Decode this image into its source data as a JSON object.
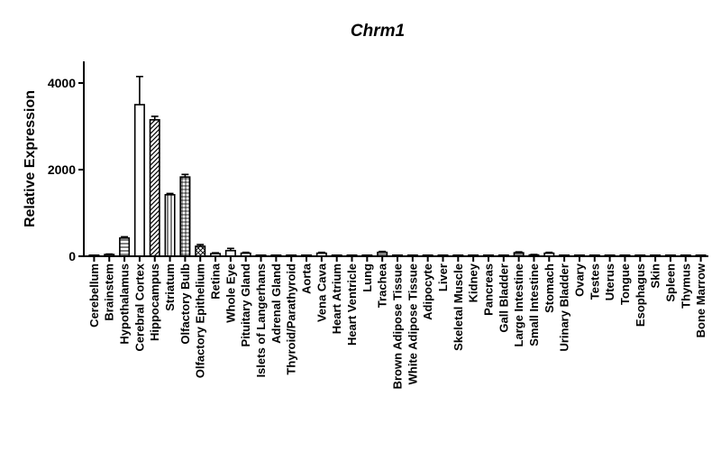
{
  "chart_data": {
    "type": "bar",
    "title": "Chrm1",
    "ylabel": "Relative Expression",
    "xlabel": "",
    "ylim": [
      0,
      4500
    ],
    "yticks": [
      0,
      2000,
      4000
    ],
    "grid": false,
    "categories": [
      "Cerebellum",
      "Brainstem",
      "Hypothalamus",
      "Cerebral Cortex",
      "Hippocampus",
      "Striatum",
      "Olfactory Bulb",
      "Olfactory Epithelium",
      "Retina",
      "Whole Eye",
      "Pituitary Gland",
      "Islets of Langerhans",
      "Adrenal Gland",
      "Thyroid/Parathyroid",
      "Aorta",
      "Vena Cava",
      "Heart Atrium",
      "Heart Ventricle",
      "Lung",
      "Trachea",
      "Brown Adipose Tissue",
      "White Adipose Tissue",
      "Adipocyte",
      "Liver",
      "Skeletal Muscle",
      "Kidney",
      "Pancreas",
      "Gall Bladder",
      "Large Intestine",
      "Small Intestine",
      "Stomach",
      "Urinary Bladder",
      "Ovary",
      "Testes",
      "Uterus",
      "Tongue",
      "Esophagus",
      "Skin",
      "Spleen",
      "Thymus",
      "Bone Marrow"
    ],
    "values": [
      10,
      40,
      420,
      3500,
      3150,
      1420,
      1830,
      230,
      60,
      130,
      70,
      20,
      15,
      15,
      10,
      70,
      10,
      10,
      15,
      90,
      10,
      10,
      10,
      5,
      10,
      10,
      15,
      10,
      80,
      30,
      70,
      10,
      10,
      5,
      5,
      5,
      5,
      10,
      5,
      5,
      5
    ],
    "errors": [
      5,
      10,
      30,
      650,
      80,
      30,
      60,
      40,
      20,
      50,
      20,
      5,
      5,
      5,
      5,
      20,
      5,
      5,
      5,
      20,
      5,
      5,
      5,
      5,
      5,
      5,
      5,
      5,
      20,
      10,
      20,
      5,
      5,
      5,
      5,
      5,
      5,
      5,
      5,
      5,
      5
    ],
    "patterns": [
      "white",
      "white",
      "hlines",
      "white",
      "diag",
      "vlines",
      "grid",
      "cross",
      "white",
      "white",
      "white",
      "white",
      "white",
      "white",
      "white",
      "white",
      "white",
      "white",
      "white",
      "hlines",
      "white",
      "white",
      "white",
      "white",
      "white",
      "white",
      "white",
      "white",
      "hlines",
      "white",
      "white",
      "white",
      "white",
      "white",
      "white",
      "white",
      "white",
      "white",
      "white",
      "white",
      "white"
    ]
  }
}
